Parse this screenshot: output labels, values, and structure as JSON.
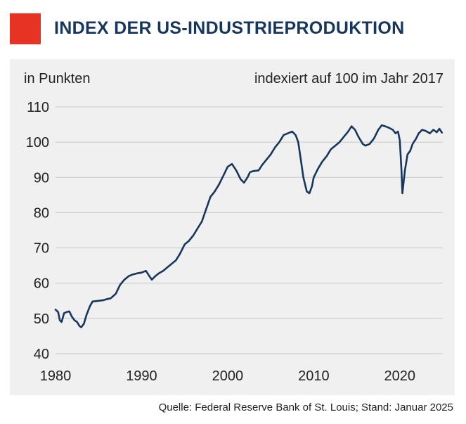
{
  "header": {
    "title": "INDEX DER US-INDUSTRIEPRODUKTION"
  },
  "colors": {
    "accent": "#e63323",
    "title": "#17365d",
    "line": "#17365d",
    "panel": "#f0f0f0",
    "grid": "#c8c8c8"
  },
  "footer": {
    "source": "Quelle: Federal Reserve Bank of St. Louis; Stand: Januar 2025"
  },
  "chart_data": {
    "type": "line",
    "title": "INDEX DER US-INDUSTRIEPRODUKTION",
    "ylabel": "in Punkten",
    "annotation": "indexiert auf 100 im Jahr 2017",
    "xlim": [
      1980,
      2025
    ],
    "ylim": [
      40,
      110
    ],
    "x_ticks": [
      "1980",
      "1990",
      "2000",
      "2010",
      "2020"
    ],
    "y_ticks": [
      "40",
      "50",
      "60",
      "70",
      "80",
      "90",
      "100",
      "110"
    ],
    "grid": "horizontal",
    "series": [
      {
        "points": [
          [
            1980.0,
            52.5
          ],
          [
            1980.3,
            51.8
          ],
          [
            1980.5,
            49.5
          ],
          [
            1980.7,
            49.0
          ],
          [
            1981.0,
            51.5
          ],
          [
            1981.3,
            51.8
          ],
          [
            1981.6,
            52.0
          ],
          [
            1981.9,
            50.5
          ],
          [
            1982.2,
            49.5
          ],
          [
            1982.5,
            49.0
          ],
          [
            1982.8,
            47.8
          ],
          [
            1983.0,
            47.5
          ],
          [
            1983.3,
            48.5
          ],
          [
            1983.6,
            51.0
          ],
          [
            1984.0,
            53.5
          ],
          [
            1984.3,
            54.8
          ],
          [
            1985.0,
            55.0
          ],
          [
            1985.6,
            55.2
          ],
          [
            1986.0,
            55.5
          ],
          [
            1986.4,
            55.7
          ],
          [
            1987.0,
            57.0
          ],
          [
            1987.5,
            59.5
          ],
          [
            1988.0,
            61.0
          ],
          [
            1988.5,
            62.0
          ],
          [
            1989.0,
            62.5
          ],
          [
            1989.5,
            62.8
          ],
          [
            1990.0,
            63.0
          ],
          [
            1990.5,
            63.5
          ],
          [
            1990.9,
            62.0
          ],
          [
            1991.2,
            61.0
          ],
          [
            1991.6,
            62.0
          ],
          [
            1992.0,
            62.8
          ],
          [
            1992.5,
            63.5
          ],
          [
            1993.0,
            64.5
          ],
          [
            1993.5,
            65.5
          ],
          [
            1994.0,
            66.5
          ],
          [
            1994.5,
            68.5
          ],
          [
            1995.0,
            71.0
          ],
          [
            1995.5,
            72.0
          ],
          [
            1996.0,
            73.5
          ],
          [
            1996.5,
            75.5
          ],
          [
            1997.0,
            77.5
          ],
          [
            1997.5,
            81.0
          ],
          [
            1998.0,
            84.5
          ],
          [
            1998.5,
            86.0
          ],
          [
            1999.0,
            88.0
          ],
          [
            1999.5,
            90.5
          ],
          [
            2000.0,
            93.0
          ],
          [
            2000.5,
            93.8
          ],
          [
            2001.0,
            92.0
          ],
          [
            2001.5,
            89.5
          ],
          [
            2001.9,
            88.5
          ],
          [
            2002.3,
            90.0
          ],
          [
            2002.6,
            91.5
          ],
          [
            2003.0,
            91.8
          ],
          [
            2003.6,
            92.0
          ],
          [
            2004.0,
            93.5
          ],
          [
            2004.5,
            95.0
          ],
          [
            2005.0,
            96.5
          ],
          [
            2005.5,
            98.5
          ],
          [
            2006.0,
            100.0
          ],
          [
            2006.5,
            102.0
          ],
          [
            2007.0,
            102.5
          ],
          [
            2007.5,
            103.0
          ],
          [
            2007.9,
            102.0
          ],
          [
            2008.2,
            100.0
          ],
          [
            2008.5,
            95.0
          ],
          [
            2008.8,
            90.0
          ],
          [
            2009.2,
            86.0
          ],
          [
            2009.5,
            85.5
          ],
          [
            2009.8,
            87.5
          ],
          [
            2010.0,
            90.0
          ],
          [
            2010.5,
            92.5
          ],
          [
            2011.0,
            94.5
          ],
          [
            2011.5,
            96.0
          ],
          [
            2012.0,
            98.0
          ],
          [
            2012.5,
            99.0
          ],
          [
            2013.0,
            100.0
          ],
          [
            2013.5,
            101.5
          ],
          [
            2014.0,
            103.0
          ],
          [
            2014.4,
            104.5
          ],
          [
            2014.8,
            103.5
          ],
          [
            2015.2,
            101.5
          ],
          [
            2015.7,
            99.5
          ],
          [
            2016.0,
            99.0
          ],
          [
            2016.5,
            99.5
          ],
          [
            2017.0,
            101.0
          ],
          [
            2017.5,
            103.5
          ],
          [
            2017.9,
            104.8
          ],
          [
            2018.3,
            104.5
          ],
          [
            2018.8,
            104.0
          ],
          [
            2019.2,
            103.5
          ],
          [
            2019.5,
            102.5
          ],
          [
            2019.8,
            103.0
          ],
          [
            2020.0,
            100.5
          ],
          [
            2020.2,
            92.0
          ],
          [
            2020.3,
            85.5
          ],
          [
            2020.6,
            92.0
          ],
          [
            2020.9,
            96.5
          ],
          [
            2021.2,
            97.5
          ],
          [
            2021.5,
            99.5
          ],
          [
            2021.9,
            101.0
          ],
          [
            2022.2,
            102.5
          ],
          [
            2022.6,
            103.5
          ],
          [
            2023.0,
            103.2
          ],
          [
            2023.5,
            102.5
          ],
          [
            2023.9,
            103.5
          ],
          [
            2024.3,
            102.8
          ],
          [
            2024.6,
            103.8
          ],
          [
            2024.9,
            102.7
          ]
        ]
      }
    ]
  }
}
